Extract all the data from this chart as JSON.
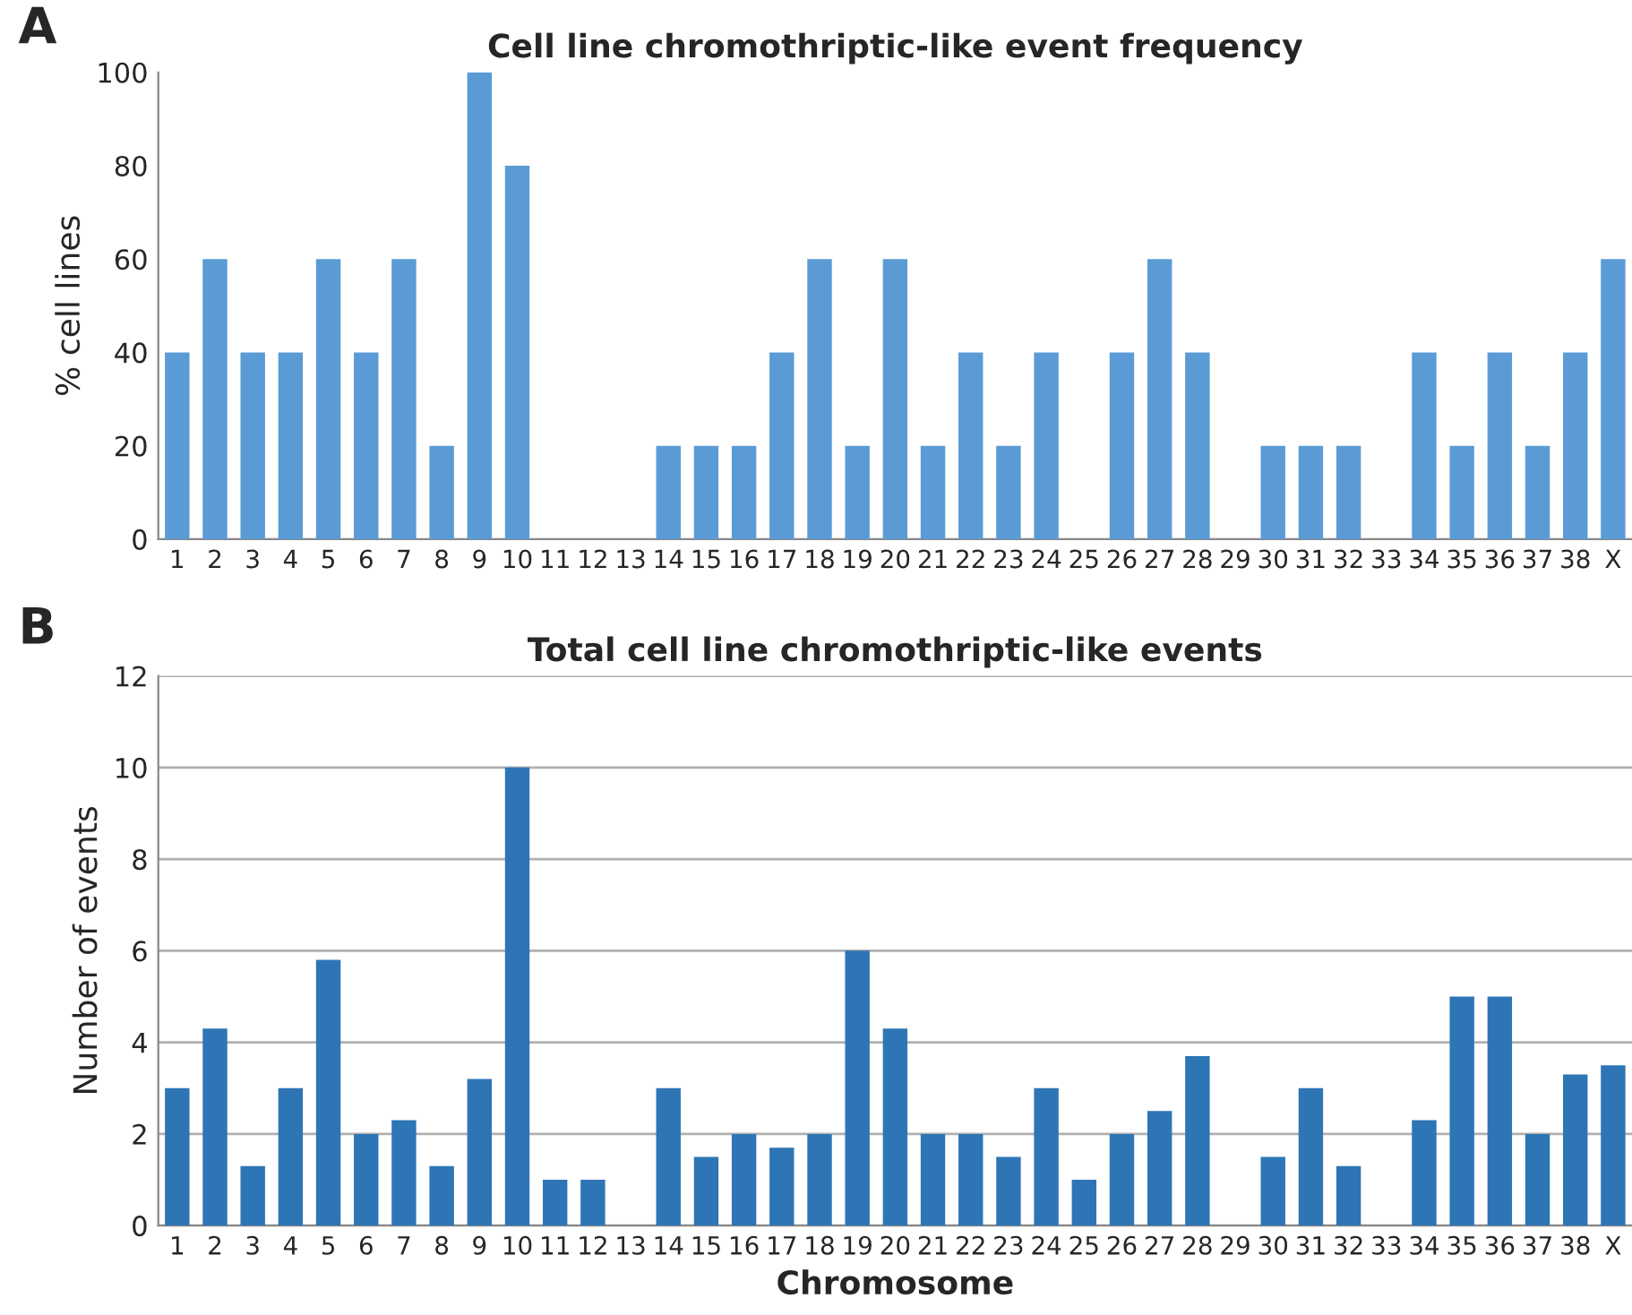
{
  "chart_data": [
    {
      "type": "bar",
      "title": "Cell line chromothriptic-like event frequency",
      "ylabel": "% cell lines",
      "annotations": [
        "A"
      ],
      "categories": [
        "1",
        "2",
        "3",
        "4",
        "5",
        "6",
        "7",
        "8",
        "9",
        "10",
        "11",
        "12",
        "13",
        "14",
        "15",
        "16",
        "17",
        "18",
        "19",
        "20",
        "21",
        "22",
        "23",
        "24",
        "25",
        "26",
        "27",
        "28",
        "29",
        "30",
        "31",
        "32",
        "33",
        "34",
        "35",
        "36",
        "37",
        "38",
        "X"
      ],
      "values": [
        40,
        60,
        40,
        40,
        60,
        40,
        60,
        20,
        100,
        80,
        0,
        0,
        0,
        20,
        20,
        20,
        40,
        60,
        20,
        60,
        20,
        40,
        20,
        40,
        0,
        40,
        60,
        40,
        0,
        20,
        20,
        20,
        0,
        40,
        20,
        40,
        20,
        40,
        60
      ],
      "color": "#5b9bd5",
      "ylim": [
        0,
        100
      ],
      "yticks": [
        0,
        20,
        40,
        60,
        80,
        100
      ],
      "grid": false
    },
    {
      "type": "bar",
      "title": "Total cell line chromothriptic-like events",
      "xlabel": "Chromosome",
      "ylabel": "Number of events",
      "annotations": [
        "B"
      ],
      "categories": [
        "1",
        "2",
        "3",
        "4",
        "5",
        "6",
        "7",
        "8",
        "9",
        "10",
        "11",
        "12",
        "13",
        "14",
        "15",
        "16",
        "17",
        "18",
        "19",
        "20",
        "21",
        "22",
        "23",
        "24",
        "25",
        "26",
        "27",
        "28",
        "29",
        "30",
        "31",
        "32",
        "33",
        "34",
        "35",
        "36",
        "37",
        "38",
        "X"
      ],
      "values": [
        3,
        4.3,
        1.3,
        3,
        5.8,
        2,
        2.3,
        1.3,
        3.2,
        10,
        1,
        1,
        0,
        3,
        1.5,
        2,
        1.7,
        2,
        6,
        4.3,
        2,
        2,
        1.5,
        3,
        1,
        2,
        2.5,
        3.7,
        0,
        1.5,
        3,
        1.3,
        0,
        2.3,
        5,
        5,
        2,
        3.3,
        3.5
      ],
      "color": "#2e75b6",
      "ylim": [
        0,
        12
      ],
      "yticks": [
        0,
        2,
        4,
        6,
        8,
        10,
        12
      ],
      "grid": "y"
    }
  ]
}
